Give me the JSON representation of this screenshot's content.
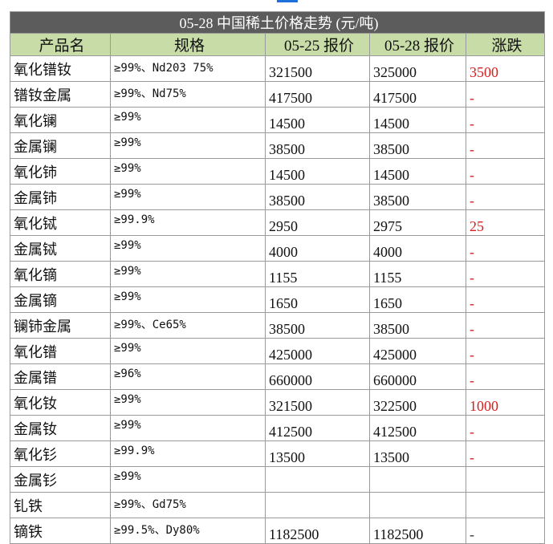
{
  "table": {
    "title": "05-28 中国稀土价格走势 (元/吨)",
    "headers": [
      "产品名",
      "规格",
      "05-25 报价",
      "05-28 报价",
      "涨跌"
    ],
    "rows": [
      [
        "氧化镨钕",
        "≥99%、Nd203 75%",
        "321500",
        "325000",
        "3500"
      ],
      [
        "镨钕金属",
        "≥99%、Nd75%",
        "417500",
        "417500",
        "-"
      ],
      [
        "氧化镧",
        "≥99%",
        "14500",
        "14500",
        "-"
      ],
      [
        "金属镧",
        "≥99%",
        "38500",
        "38500",
        "-"
      ],
      [
        "氧化铈",
        "≥99%",
        "14500",
        "14500",
        "-"
      ],
      [
        "金属铈",
        "≥99%",
        "38500",
        "38500",
        "-"
      ],
      [
        "氧化铽",
        "≥99.9%",
        "2950",
        "2975",
        "25"
      ],
      [
        "金属铽",
        "≥99%",
        "4000",
        "4000",
        "-"
      ],
      [
        "氧化镝",
        "≥99%",
        "1155",
        "1155",
        "-"
      ],
      [
        "金属镝",
        "≥99%",
        "1650",
        "1650",
        "-"
      ],
      [
        "镧铈金属",
        "≥99%、Ce65%",
        "38500",
        "38500",
        "-"
      ],
      [
        "氧化镨",
        "≥99%",
        "425000",
        "425000",
        "-"
      ],
      [
        "金属镨",
        "≥96%",
        "660000",
        "660000",
        "-"
      ],
      [
        "氧化钕",
        "≥99%",
        "321500",
        "322500",
        "1000"
      ],
      [
        "金属钕",
        "≥99%",
        "412500",
        "412500",
        "-"
      ],
      [
        "氧化钐",
        "≥99.9%",
        "13500",
        "13500",
        "-"
      ],
      [
        "金属钐",
        "≥99%",
        null,
        null,
        null
      ],
      [
        "钆铁",
        "≥99%、Gd75%",
        null,
        null,
        null
      ],
      [
        "镝铁",
        "≥99.5%、Dy80%",
        "1182500",
        "1182500",
        "-"
      ]
    ]
  }
}
